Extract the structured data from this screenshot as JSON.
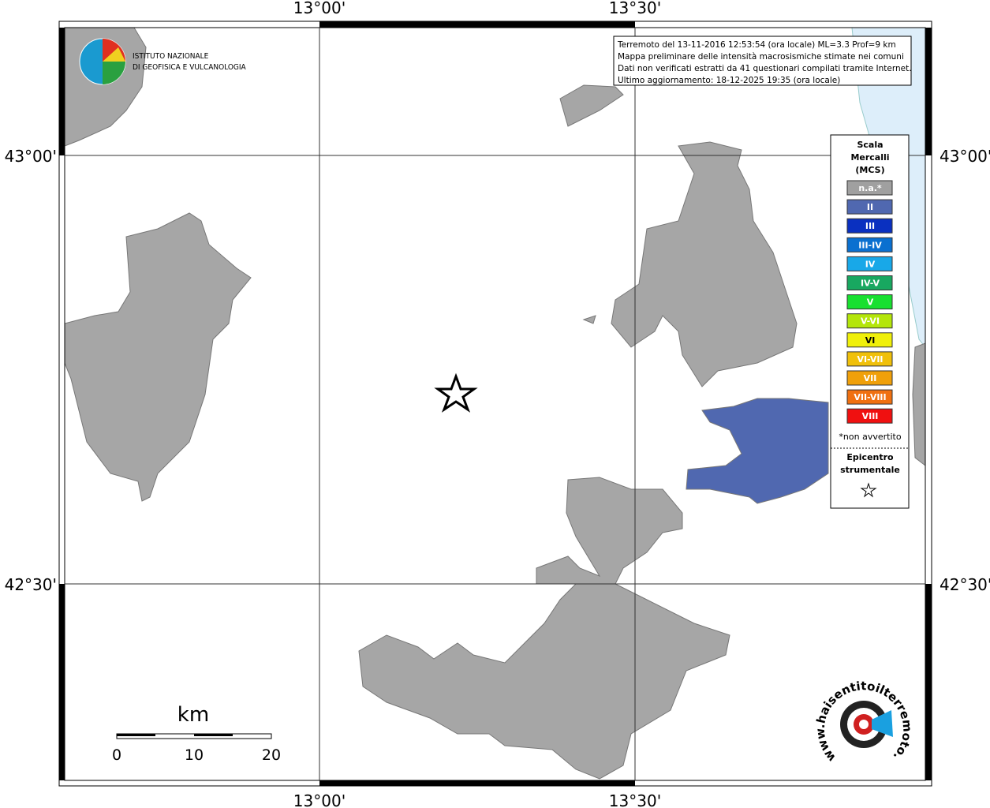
{
  "map": {
    "lon_labels": [
      "13°00'",
      "13°30'"
    ],
    "lat_labels": [
      "43°00'",
      "42°30'"
    ],
    "info": [
      "Terremoto del 13-11-2016 12:53:54 (ora locale) ML=3.3 Prof=9 km",
      "Mappa preliminare delle intensità macrosismiche stimate nei comuni",
      "Dati non verificati estratti da 41 questionari compilati tramite Internet.",
      "Ultimo aggiornamento: 18-12-2025 19:35 (ora locale)"
    ],
    "legend": {
      "title": [
        "Scala",
        "Mercalli",
        "(MCS)"
      ],
      "items": [
        {
          "label": "n.a.*",
          "color": "#a0a0a0"
        },
        {
          "label": "II",
          "color": "#5068b0"
        },
        {
          "label": "III",
          "color": "#0a30c0"
        },
        {
          "label": "III-IV",
          "color": "#0a70d0"
        },
        {
          "label": "IV",
          "color": "#18a8e8"
        },
        {
          "label": "IV-V",
          "color": "#18a860"
        },
        {
          "label": "V",
          "color": "#18e030"
        },
        {
          "label": "V-VI",
          "color": "#b4e60a"
        },
        {
          "label": "VI",
          "color": "#f0f00a"
        },
        {
          "label": "VI-VII",
          "color": "#f0c00a"
        },
        {
          "label": "VII",
          "color": "#f0a00a"
        },
        {
          "label": "VII-VIII",
          "color": "#f07010"
        },
        {
          "label": "VIII",
          "color": "#f01010"
        }
      ],
      "note": "*non avvertito",
      "epicenter": [
        "Epicentro",
        "strumentale"
      ]
    },
    "scale_bar": {
      "unit": "km",
      "labels": [
        "0",
        "10",
        "20"
      ]
    },
    "logo": [
      "ISTITUTO NAZIONALE",
      "DI GEOFISICA E VULCANOLOGIA"
    ],
    "badge": "www.haisentitoilterremoto.it"
  }
}
